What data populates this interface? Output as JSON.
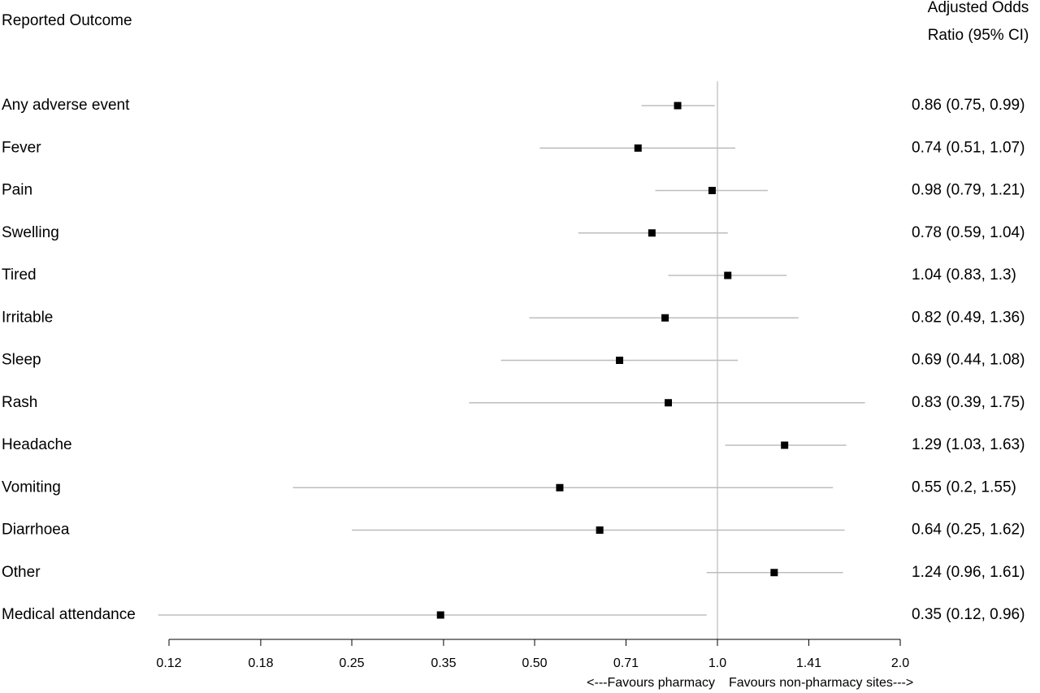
{
  "chart_data": {
    "type": "forest",
    "row_header": "Reported Outcome",
    "value_header": [
      "Adjusted Odds",
      "Ratio (95% CI)"
    ],
    "categories": [
      "Any adverse event",
      "Fever",
      "Pain",
      "Swelling",
      "Tired",
      "Irritable",
      "Sleep",
      "Rash",
      "Headache",
      "Vomiting",
      "Diarrhoea",
      "Other",
      "Medical attendance"
    ],
    "values": [
      0.86,
      0.74,
      0.98,
      0.78,
      1.04,
      0.82,
      0.69,
      0.83,
      1.29,
      0.55,
      0.64,
      1.24,
      0.35
    ],
    "lower": [
      0.75,
      0.51,
      0.79,
      0.59,
      0.83,
      0.49,
      0.44,
      0.39,
      1.03,
      0.2,
      0.25,
      0.96,
      0.12
    ],
    "upper": [
      0.99,
      1.07,
      1.21,
      1.04,
      1.3,
      1.36,
      1.08,
      1.75,
      1.63,
      1.55,
      1.62,
      1.61,
      0.96
    ],
    "value_labels": [
      "0.86 (0.75, 0.99)",
      "0.74 (0.51, 1.07)",
      "0.98 (0.79, 1.21)",
      "0.78 (0.59, 1.04)",
      "1.04 (0.83, 1.3)",
      "0.82 (0.49, 1.36)",
      "0.69 (0.44, 1.08)",
      "0.83 (0.39, 1.75)",
      "1.29 (1.03, 1.63)",
      "0.55 (0.2, 1.55)",
      "0.64 (0.25, 1.62)",
      "1.24 (0.96, 1.61)",
      "0.35 (0.12, 0.96)"
    ],
    "color": "#000000",
    "ci_color": "#bdbdbd",
    "ref_line": 1,
    "log_scale": true,
    "xlim": [
      0.125,
      2
    ],
    "xticks": [
      {
        "value": 0.125,
        "label": "0.12"
      },
      {
        "value": 0.177,
        "label": "0.18"
      },
      0.25,
      {
        "value": 0.354,
        "label": "0.35"
      },
      {
        "value": 0.5,
        "label": "0.50"
      },
      {
        "value": 0.707,
        "label": "0.71"
      },
      {
        "value": 1,
        "label": "1.0"
      },
      {
        "value": 1.414,
        "label": "1.41"
      },
      {
        "value": 2,
        "label": "2.0"
      }
    ],
    "annotations": [
      "<---Favours pharmacy",
      "Favours non-pharmacy sites--->"
    ]
  }
}
